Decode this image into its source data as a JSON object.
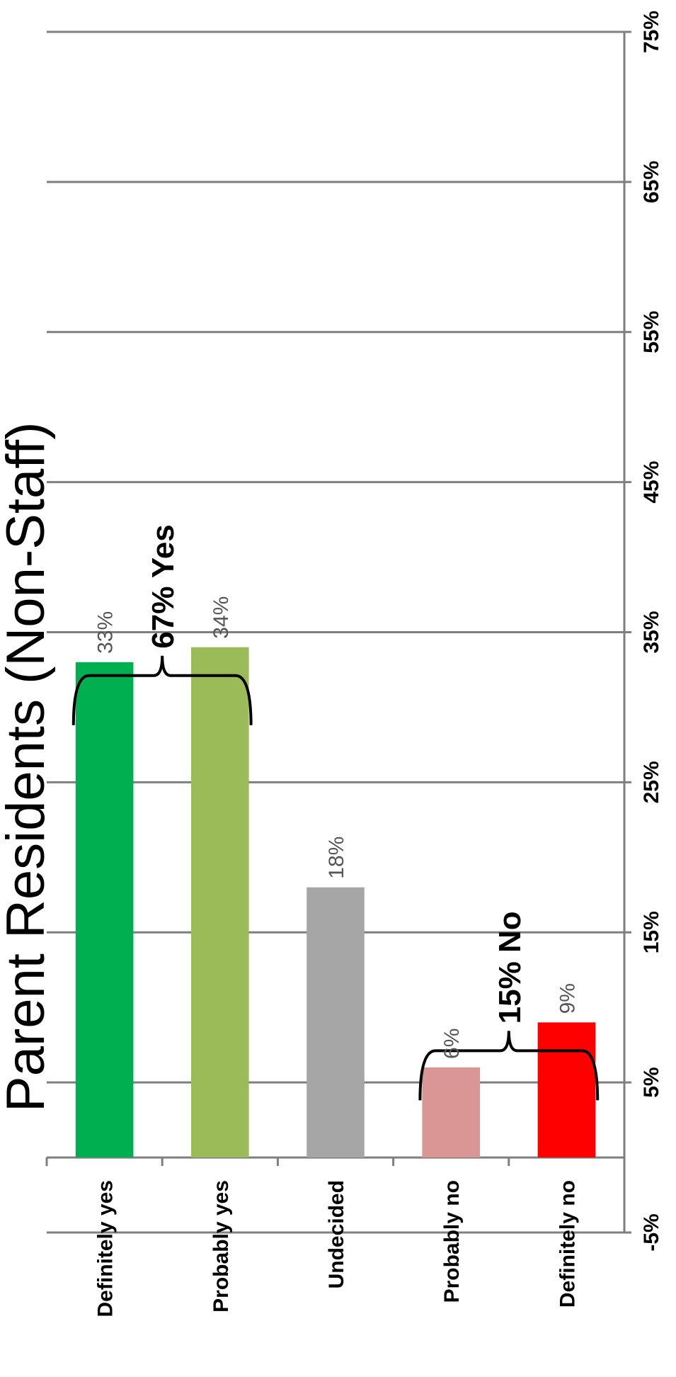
{
  "chart_data": {
    "type": "bar",
    "title": "Parent Residents (Non-Staff)",
    "categories": [
      "Definitely yes",
      "Probably yes",
      "Undecided",
      "Probably no",
      "Definitely no"
    ],
    "values": [
      33,
      34,
      18,
      6,
      9
    ],
    "value_labels": [
      "33%",
      "34%",
      "18%",
      "6%",
      "9%"
    ],
    "colors": [
      "#00b050",
      "#9bbb59",
      "#a6a6a6",
      "#d99694",
      "#ff0000"
    ],
    "ylim": [
      -5,
      75
    ],
    "ytick_values": [
      -5,
      5,
      15,
      25,
      35,
      45,
      55,
      65,
      75
    ],
    "ytick_labels": [
      "-5%",
      "5%",
      "15%",
      "25%",
      "35%",
      "45%",
      "55%",
      "65%",
      "75%"
    ],
    "grid": true,
    "orientation": "rotated 90° clockwise",
    "annotations": [
      {
        "label": "67% Yes",
        "covers": [
          "Definitely yes",
          "Probably yes"
        ]
      },
      {
        "label": "15% No",
        "covers": [
          "Probably no",
          "Definitely no"
        ]
      }
    ]
  }
}
